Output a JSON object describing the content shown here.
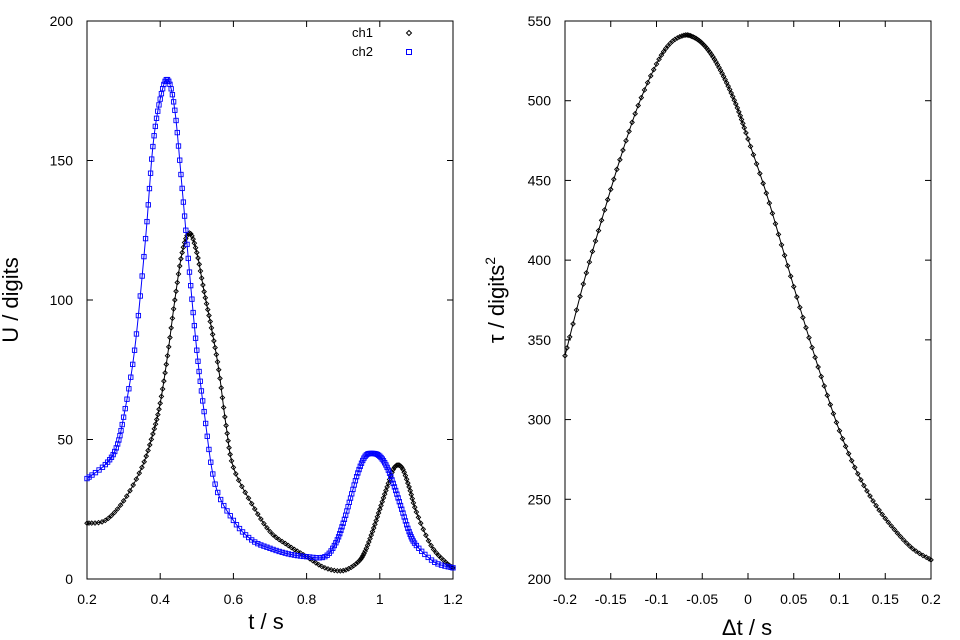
{
  "chart_data": [
    {
      "type": "scatter",
      "xlabel": "t / s",
      "ylabel": "U / digits",
      "xlim": [
        0.2,
        1.2
      ],
      "ylim": [
        0,
        200
      ],
      "xticks": [
        "0.2",
        "0.4",
        "0.6",
        "0.8",
        "1",
        "1.2"
      ],
      "yticks": [
        "0",
        "50",
        "100",
        "150",
        "200"
      ],
      "grid": false,
      "legend_position": "top-right",
      "series": [
        {
          "name": "ch1",
          "color": "#000000",
          "marker": "diamond",
          "x": [
            0.2,
            0.25,
            0.3,
            0.35,
            0.38,
            0.4,
            0.42,
            0.44,
            0.46,
            0.48,
            0.5,
            0.52,
            0.54,
            0.56,
            0.58,
            0.6,
            0.65,
            0.7,
            0.75,
            0.8,
            0.85,
            0.9,
            0.94,
            0.96,
            0.98,
            1.0,
            1.02,
            1.04,
            1.06,
            1.08,
            1.1,
            1.14,
            1.18,
            1.2
          ],
          "y": [
            20,
            21,
            28,
            40,
            52,
            63,
            80,
            100,
            117,
            124,
            117,
            103,
            90,
            75,
            55,
            40,
            27,
            17,
            12,
            8,
            4,
            3,
            6,
            10,
            17,
            25,
            33,
            40,
            40,
            33,
            24,
            12,
            6,
            4
          ]
        },
        {
          "name": "ch2",
          "color": "#0000ff",
          "marker": "square",
          "x": [
            0.2,
            0.25,
            0.28,
            0.3,
            0.33,
            0.36,
            0.38,
            0.4,
            0.42,
            0.44,
            0.46,
            0.48,
            0.5,
            0.52,
            0.55,
            0.6,
            0.65,
            0.7,
            0.75,
            0.8,
            0.85,
            0.88,
            0.9,
            0.92,
            0.94,
            0.96,
            0.98,
            1.0,
            1.02,
            1.04,
            1.06,
            1.08,
            1.1,
            1.15,
            1.2
          ],
          "y": [
            36,
            41,
            47,
            58,
            82,
            122,
            155,
            172,
            179,
            168,
            140,
            110,
            82,
            60,
            34,
            21,
            14,
            11,
            9,
            8,
            8,
            13,
            20,
            29,
            38,
            44,
            45,
            44,
            40,
            33,
            25,
            17,
            12,
            6,
            4
          ]
        }
      ]
    },
    {
      "type": "line",
      "xlabel": "Δt / s",
      "ylabel": "τ / digits",
      "ylabel_superscript": "2",
      "xlim": [
        -0.2,
        0.2
      ],
      "ylim": [
        200,
        550
      ],
      "xticks": [
        "-0.2",
        "-0.15",
        "-0.1",
        "-0.05",
        "0",
        "0.05",
        "0.1",
        "0.15",
        "0.2"
      ],
      "yticks": [
        "200",
        "250",
        "300",
        "350",
        "400",
        "450",
        "500",
        "550"
      ],
      "grid": false,
      "series": [
        {
          "color": "#000000",
          "marker": "diamond",
          "x": [
            -0.2,
            -0.18,
            -0.16,
            -0.14,
            -0.12,
            -0.1,
            -0.085,
            -0.07,
            -0.06,
            -0.05,
            -0.04,
            -0.03,
            -0.02,
            -0.01,
            0.0,
            0.02,
            0.04,
            0.06,
            0.08,
            0.1,
            0.12,
            0.14,
            0.16,
            0.18,
            0.2
          ],
          "y": [
            340,
            385,
            425,
            463,
            497,
            523,
            536,
            541,
            540,
            536,
            529,
            519,
            507,
            493,
            476,
            442,
            403,
            364,
            327,
            293,
            266,
            246,
            231,
            219,
            212
          ]
        }
      ]
    }
  ]
}
